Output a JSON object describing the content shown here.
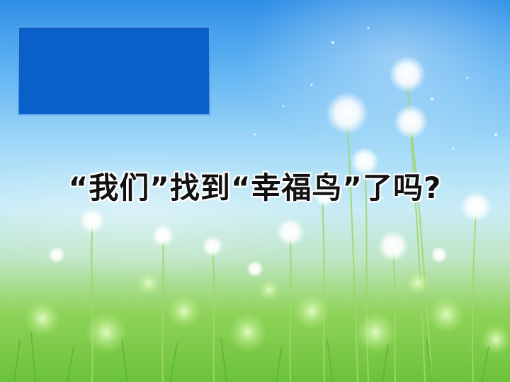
{
  "slide": {
    "title": "“我们”找到“幸福鸟”了吗?"
  },
  "colors": {
    "box": "#0960c8",
    "sky_top": "#2f8fe6",
    "grass": "#6cc23a"
  }
}
